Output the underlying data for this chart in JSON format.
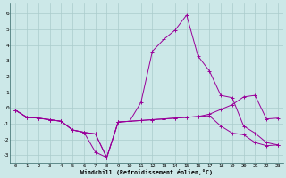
{
  "xlabel": "Windchill (Refroidissement éolien,°C)",
  "bg_color": "#cce8e8",
  "line_color": "#990099",
  "grid_color": "#aacccc",
  "xlim": [
    -0.5,
    23.5
  ],
  "ylim": [
    -3.5,
    6.7
  ],
  "yticks": [
    -3,
    -2,
    -1,
    0,
    1,
    2,
    3,
    4,
    5,
    6
  ],
  "xticks": [
    0,
    1,
    2,
    3,
    4,
    5,
    6,
    7,
    8,
    9,
    10,
    11,
    12,
    13,
    14,
    15,
    16,
    17,
    18,
    19,
    20,
    21,
    22,
    23
  ],
  "line1_x": [
    0,
    1,
    2,
    3,
    4,
    5,
    6,
    7,
    8,
    9,
    10,
    11,
    12,
    13,
    14,
    15,
    16,
    17,
    18,
    19,
    20,
    21,
    22,
    23
  ],
  "line1_y": [
    -0.15,
    -0.6,
    -0.65,
    -0.75,
    -0.85,
    -1.4,
    -1.55,
    -2.8,
    -3.15,
    -0.9,
    -0.85,
    -0.8,
    -0.75,
    -0.7,
    -0.65,
    -0.6,
    -0.55,
    -0.5,
    -1.15,
    -1.6,
    -1.7,
    -2.2,
    -2.4,
    -2.35
  ],
  "line2_x": [
    0,
    1,
    2,
    3,
    4,
    5,
    6,
    7,
    8,
    9,
    10,
    11,
    12,
    13,
    14,
    15,
    16,
    17,
    18,
    19,
    20,
    21,
    22,
    23
  ],
  "line2_y": [
    -0.15,
    -0.6,
    -0.65,
    -0.75,
    -0.85,
    -1.4,
    -1.55,
    -1.65,
    -3.15,
    -0.9,
    -0.85,
    0.35,
    3.6,
    4.35,
    4.95,
    5.9,
    3.3,
    2.35,
    0.8,
    0.65,
    -1.15,
    -1.6,
    -2.2,
    -2.35
  ],
  "line3_x": [
    0,
    1,
    2,
    3,
    4,
    5,
    6,
    7,
    8,
    9,
    10,
    11,
    12,
    13,
    14,
    15,
    16,
    17,
    18,
    19,
    20,
    21,
    22,
    23
  ],
  "line3_y": [
    -0.15,
    -0.6,
    -0.65,
    -0.75,
    -0.85,
    -1.4,
    -1.55,
    -1.65,
    -3.15,
    -0.9,
    -0.85,
    -0.8,
    -0.75,
    -0.7,
    -0.65,
    -0.6,
    -0.55,
    -0.4,
    -0.1,
    0.2,
    0.7,
    0.8,
    -0.7,
    -0.65
  ]
}
